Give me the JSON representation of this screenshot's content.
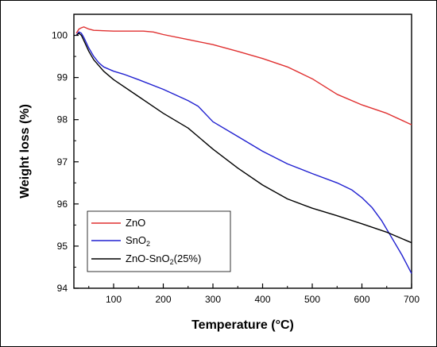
{
  "chart_data": {
    "type": "line",
    "xlabel": "Temperature (°C)",
    "ylabel": "Weight loss (%)",
    "xlim": [
      20,
      700
    ],
    "ylim": [
      94,
      100.5
    ],
    "x_ticks": [
      100,
      200,
      300,
      400,
      500,
      600,
      700
    ],
    "y_ticks": [
      94,
      95,
      96,
      97,
      98,
      99,
      100
    ],
    "grid": false,
    "legend_position": "bottom-left",
    "series": [
      {
        "name": "ZnO",
        "color": "#e03030",
        "points": [
          [
            25,
            100.05
          ],
          [
            30,
            100.15
          ],
          [
            35,
            100.18
          ],
          [
            40,
            100.2
          ],
          [
            50,
            100.15
          ],
          [
            60,
            100.12
          ],
          [
            80,
            100.11
          ],
          [
            100,
            100.1
          ],
          [
            120,
            100.1
          ],
          [
            140,
            100.1
          ],
          [
            160,
            100.1
          ],
          [
            180,
            100.08
          ],
          [
            200,
            100.02
          ],
          [
            250,
            99.9
          ],
          [
            300,
            99.78
          ],
          [
            350,
            99.62
          ],
          [
            400,
            99.45
          ],
          [
            450,
            99.25
          ],
          [
            500,
            98.97
          ],
          [
            550,
            98.6
          ],
          [
            600,
            98.35
          ],
          [
            650,
            98.15
          ],
          [
            700,
            97.88
          ]
        ]
      },
      {
        "name": "SnO",
        "name_sub": "2",
        "color": "#2020d0",
        "points": [
          [
            25,
            100.0
          ],
          [
            30,
            100.08
          ],
          [
            35,
            100.05
          ],
          [
            40,
            99.95
          ],
          [
            50,
            99.7
          ],
          [
            60,
            99.5
          ],
          [
            70,
            99.35
          ],
          [
            80,
            99.25
          ],
          [
            100,
            99.15
          ],
          [
            120,
            99.08
          ],
          [
            150,
            98.95
          ],
          [
            200,
            98.72
          ],
          [
            250,
            98.45
          ],
          [
            270,
            98.32
          ],
          [
            300,
            97.95
          ],
          [
            350,
            97.6
          ],
          [
            400,
            97.25
          ],
          [
            450,
            96.95
          ],
          [
            500,
            96.72
          ],
          [
            550,
            96.5
          ],
          [
            580,
            96.33
          ],
          [
            600,
            96.15
          ],
          [
            620,
            95.92
          ],
          [
            640,
            95.6
          ],
          [
            660,
            95.2
          ],
          [
            680,
            94.8
          ],
          [
            700,
            94.35
          ]
        ]
      },
      {
        "name": "ZnO-SnO",
        "name_sub": "2",
        "name_suffix": "(25%)",
        "color": "#000000",
        "points": [
          [
            25,
            100.0
          ],
          [
            30,
            100.05
          ],
          [
            35,
            100.0
          ],
          [
            40,
            99.88
          ],
          [
            50,
            99.62
          ],
          [
            60,
            99.42
          ],
          [
            80,
            99.15
          ],
          [
            100,
            98.95
          ],
          [
            150,
            98.55
          ],
          [
            200,
            98.15
          ],
          [
            250,
            97.8
          ],
          [
            300,
            97.3
          ],
          [
            350,
            96.85
          ],
          [
            400,
            96.45
          ],
          [
            450,
            96.12
          ],
          [
            500,
            95.9
          ],
          [
            550,
            95.72
          ],
          [
            600,
            95.53
          ],
          [
            650,
            95.33
          ],
          [
            700,
            95.08
          ]
        ]
      }
    ]
  }
}
